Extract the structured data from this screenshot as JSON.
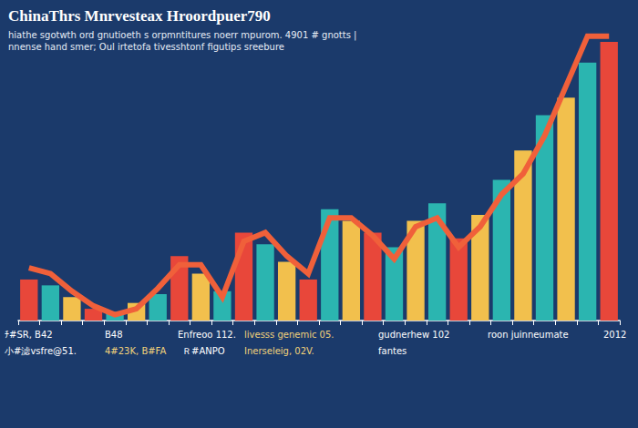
{
  "chart_data": {
    "type": "bar",
    "title": "ChinaThrs Mnrvesteax Hroordpuer790",
    "subtitle": [
      "hiathe sgotwth ord gnutioeth s orpmntitures noerr mpurom. 4901 # gnotts |",
      "nnense hand smer; Oul irtetofa tivesshtonf figutips sreebure"
    ],
    "categories": [
      null,
      null,
      null,
      null,
      null,
      null,
      null,
      null,
      null,
      null,
      null,
      null,
      null,
      null,
      null,
      null,
      null,
      null,
      null,
      null,
      null,
      null,
      null,
      null,
      null,
      null,
      null,
      null
    ],
    "series": [
      {
        "type": "bar",
        "colors": [
          "#e8473a",
          "#2bb5b0",
          "#f2c04d",
          "#e8473a",
          "#2bb5b0",
          "#f2c04d",
          "#2bb5b0",
          "#e8473a",
          "#f2c04d",
          "#2bb5b0",
          "#e8473a",
          "#2bb5b0",
          "#f2c04d",
          "#e8473a",
          "#2bb5b0",
          "#f2c04d",
          "#e8473a",
          "#2bb5b0",
          "#f2c04d",
          "#2bb5b0",
          "#e8473a",
          "#f2c04d",
          "#2bb5b0",
          "#f2c04d",
          "#2bb5b0",
          "#f2c04d",
          "#2bb5b0",
          "#e8473a"
        ],
        "values": [
          14,
          12,
          8,
          4,
          3,
          6,
          9,
          22,
          16,
          10,
          30,
          26,
          20,
          14,
          38,
          34,
          30,
          25,
          34,
          40,
          28,
          36,
          48,
          58,
          70,
          76,
          88,
          95
        ]
      },
      {
        "type": "line",
        "color": "#f0603a",
        "values": [
          18,
          16,
          10,
          5,
          2,
          4,
          11,
          19,
          19,
          8,
          27,
          30,
          22,
          16,
          35,
          35,
          29,
          21,
          32,
          35,
          25,
          32,
          43,
          50,
          63,
          80,
          97,
          97
        ]
      }
    ],
    "annotations": [
      "ﾁ#SR, B42",
      "B48",
      "Enfreoo 112.",
      "livesss genemic 05.",
      "gudnerhew 102",
      "roon juinneumate",
      "2012",
      "小#滤vsfre@51.",
      "4#23K, B#FA",
      "Ｒ#ANPO",
      "Inerseleig, 02V.",
      "fantes"
    ],
    "ylim": [
      0,
      100
    ],
    "grid": false,
    "tick_labels": false
  }
}
